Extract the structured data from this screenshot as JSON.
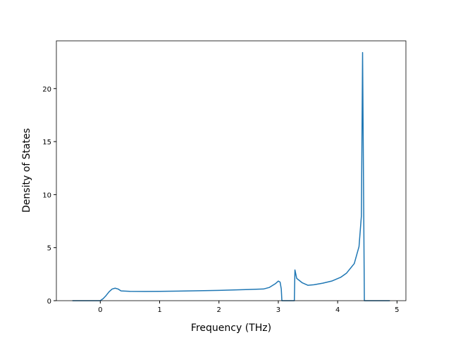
{
  "chart_data": {
    "type": "line",
    "x_label": "Frequency (THz)",
    "y_label": "Density of States",
    "xlim": [
      -0.74,
      5.15
    ],
    "ylim": [
      0,
      24.5
    ],
    "xticks": [
      0,
      1,
      2,
      3,
      4,
      5
    ],
    "yticks": [
      0,
      5,
      10,
      15,
      20
    ],
    "series": [
      {
        "color": "#1f77b4",
        "x": [
          -0.47,
          0,
          0.05,
          0.1,
          0.15,
          0.2,
          0.25,
          0.3,
          0.35,
          0.5,
          0.75,
          1,
          1.5,
          2,
          2.5,
          2.75,
          2.85,
          2.95,
          3.0,
          3.03,
          3.05,
          3.06,
          3.27,
          3.28,
          3.31,
          3.4,
          3.5,
          3.6,
          3.75,
          3.9,
          4.05,
          4.15,
          4.28,
          4.36,
          4.4,
          4.42,
          4.45,
          4.88
        ],
        "values": [
          0,
          0,
          0.2,
          0.5,
          0.85,
          1.1,
          1.18,
          1.1,
          0.92,
          0.88,
          0.87,
          0.88,
          0.92,
          0.97,
          1.05,
          1.1,
          1.25,
          1.6,
          1.85,
          1.75,
          1.1,
          0,
          0,
          2.9,
          2.1,
          1.7,
          1.45,
          1.5,
          1.65,
          1.85,
          2.2,
          2.6,
          3.5,
          5.1,
          8,
          23.4,
          0,
          0
        ]
      }
    ]
  }
}
